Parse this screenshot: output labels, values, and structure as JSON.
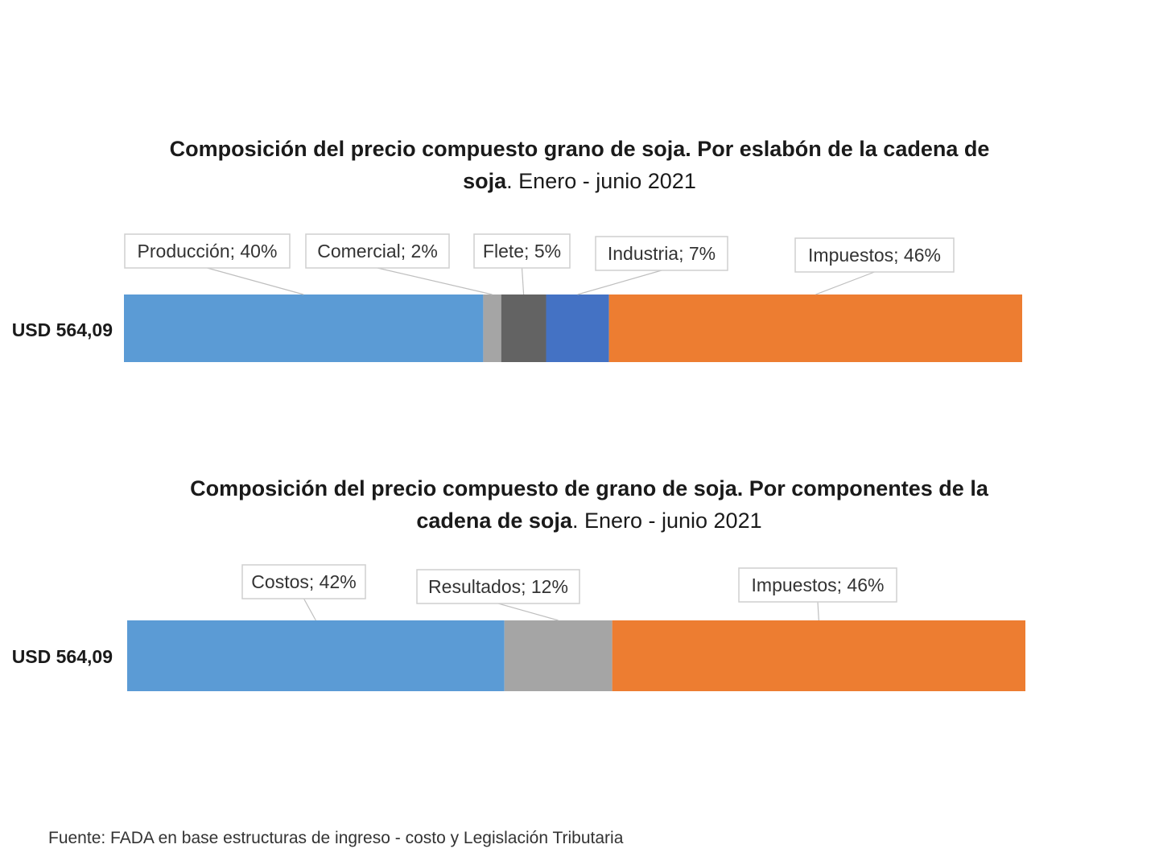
{
  "chart_data": [
    {
      "type": "bar",
      "orientation": "horizontal-stacked",
      "title_bold": "Composición del precio compuesto grano de soja. Por eslabón de la cadena de soja",
      "title_regular": ". Enero - junio 2021",
      "category_label": "USD 564,09",
      "series": [
        {
          "name": "Producción",
          "value": 40,
          "label": "Producción; 40%",
          "color": "#5b9bd5"
        },
        {
          "name": "Comercial",
          "value": 2,
          "label": "Comercial; 2%",
          "color": "#a5a5a5"
        },
        {
          "name": "Flete",
          "value": 5,
          "label": "Flete; 5%",
          "color": "#636363"
        },
        {
          "name": "Industria",
          "value": 7,
          "label": "Industria; 7%",
          "color": "#4472c4"
        },
        {
          "name": "Impuestos",
          "value": 46,
          "label": "Impuestos; 46%",
          "color": "#ed7d31"
        }
      ]
    },
    {
      "type": "bar",
      "orientation": "horizontal-stacked",
      "title_bold": "Composición del precio compuesto de grano de soja. Por componentes de la cadena de soja",
      "title_regular": ". Enero - junio 2021",
      "category_label": "USD 564,09",
      "series": [
        {
          "name": "Costos",
          "value": 42,
          "label": "Costos; 42%",
          "color": "#5b9bd5"
        },
        {
          "name": "Resultados",
          "value": 12,
          "label": "Resultados; 12%",
          "color": "#a5a5a5"
        },
        {
          "name": "Impuestos",
          "value": 46,
          "label": "Impuestos; 46%",
          "color": "#ed7d31"
        }
      ]
    }
  ],
  "footer": "Fuente: FADA en base estructuras de ingreso - costo y Legislación Tributaria"
}
